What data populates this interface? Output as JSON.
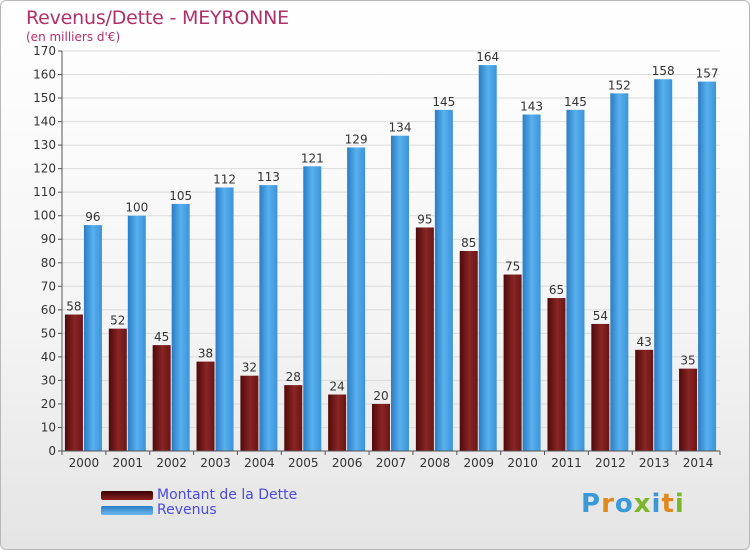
{
  "title": "Revenus/Dette - MEYRONNE",
  "subtitle": "(en milliers d'€)",
  "colors": {
    "dette": "#7a1a1a",
    "revenus": "#4aa3e6",
    "title": "#b0306a",
    "legend_text": "#4a4ae0"
  },
  "chart_data": {
    "type": "bar",
    "categories": [
      "2000",
      "2001",
      "2002",
      "2003",
      "2004",
      "2005",
      "2006",
      "2007",
      "2008",
      "2009",
      "2010",
      "2011",
      "2012",
      "2013",
      "2014"
    ],
    "series": [
      {
        "name": "Montant de la Dette",
        "values": [
          58,
          52,
          45,
          38,
          32,
          28,
          24,
          20,
          95,
          85,
          75,
          65,
          54,
          43,
          35
        ]
      },
      {
        "name": "Revenus",
        "values": [
          96,
          100,
          105,
          112,
          113,
          121,
          129,
          134,
          145,
          164,
          143,
          145,
          152,
          158,
          157
        ]
      }
    ],
    "ylim": [
      0,
      170
    ],
    "ytick_step": 10,
    "grid": true,
    "legend_position": "bottom-left"
  },
  "legend": [
    {
      "label": "Montant de la Dette",
      "color": "#7a1a1a"
    },
    {
      "label": "Revenus",
      "color": "#4aa3e6"
    }
  ],
  "logo": {
    "letters": [
      {
        "ch": "P",
        "color": "#3a9ad9"
      },
      {
        "ch": "r",
        "color": "#e08a1e"
      },
      {
        "ch": "o",
        "color": "#3a9ad9"
      },
      {
        "ch": "x",
        "color": "#7ab829"
      },
      {
        "ch": "i",
        "color": "#3a9ad9"
      },
      {
        "ch": "t",
        "color": "#e08a1e"
      },
      {
        "ch": "i",
        "color": "#7ab829"
      }
    ]
  }
}
